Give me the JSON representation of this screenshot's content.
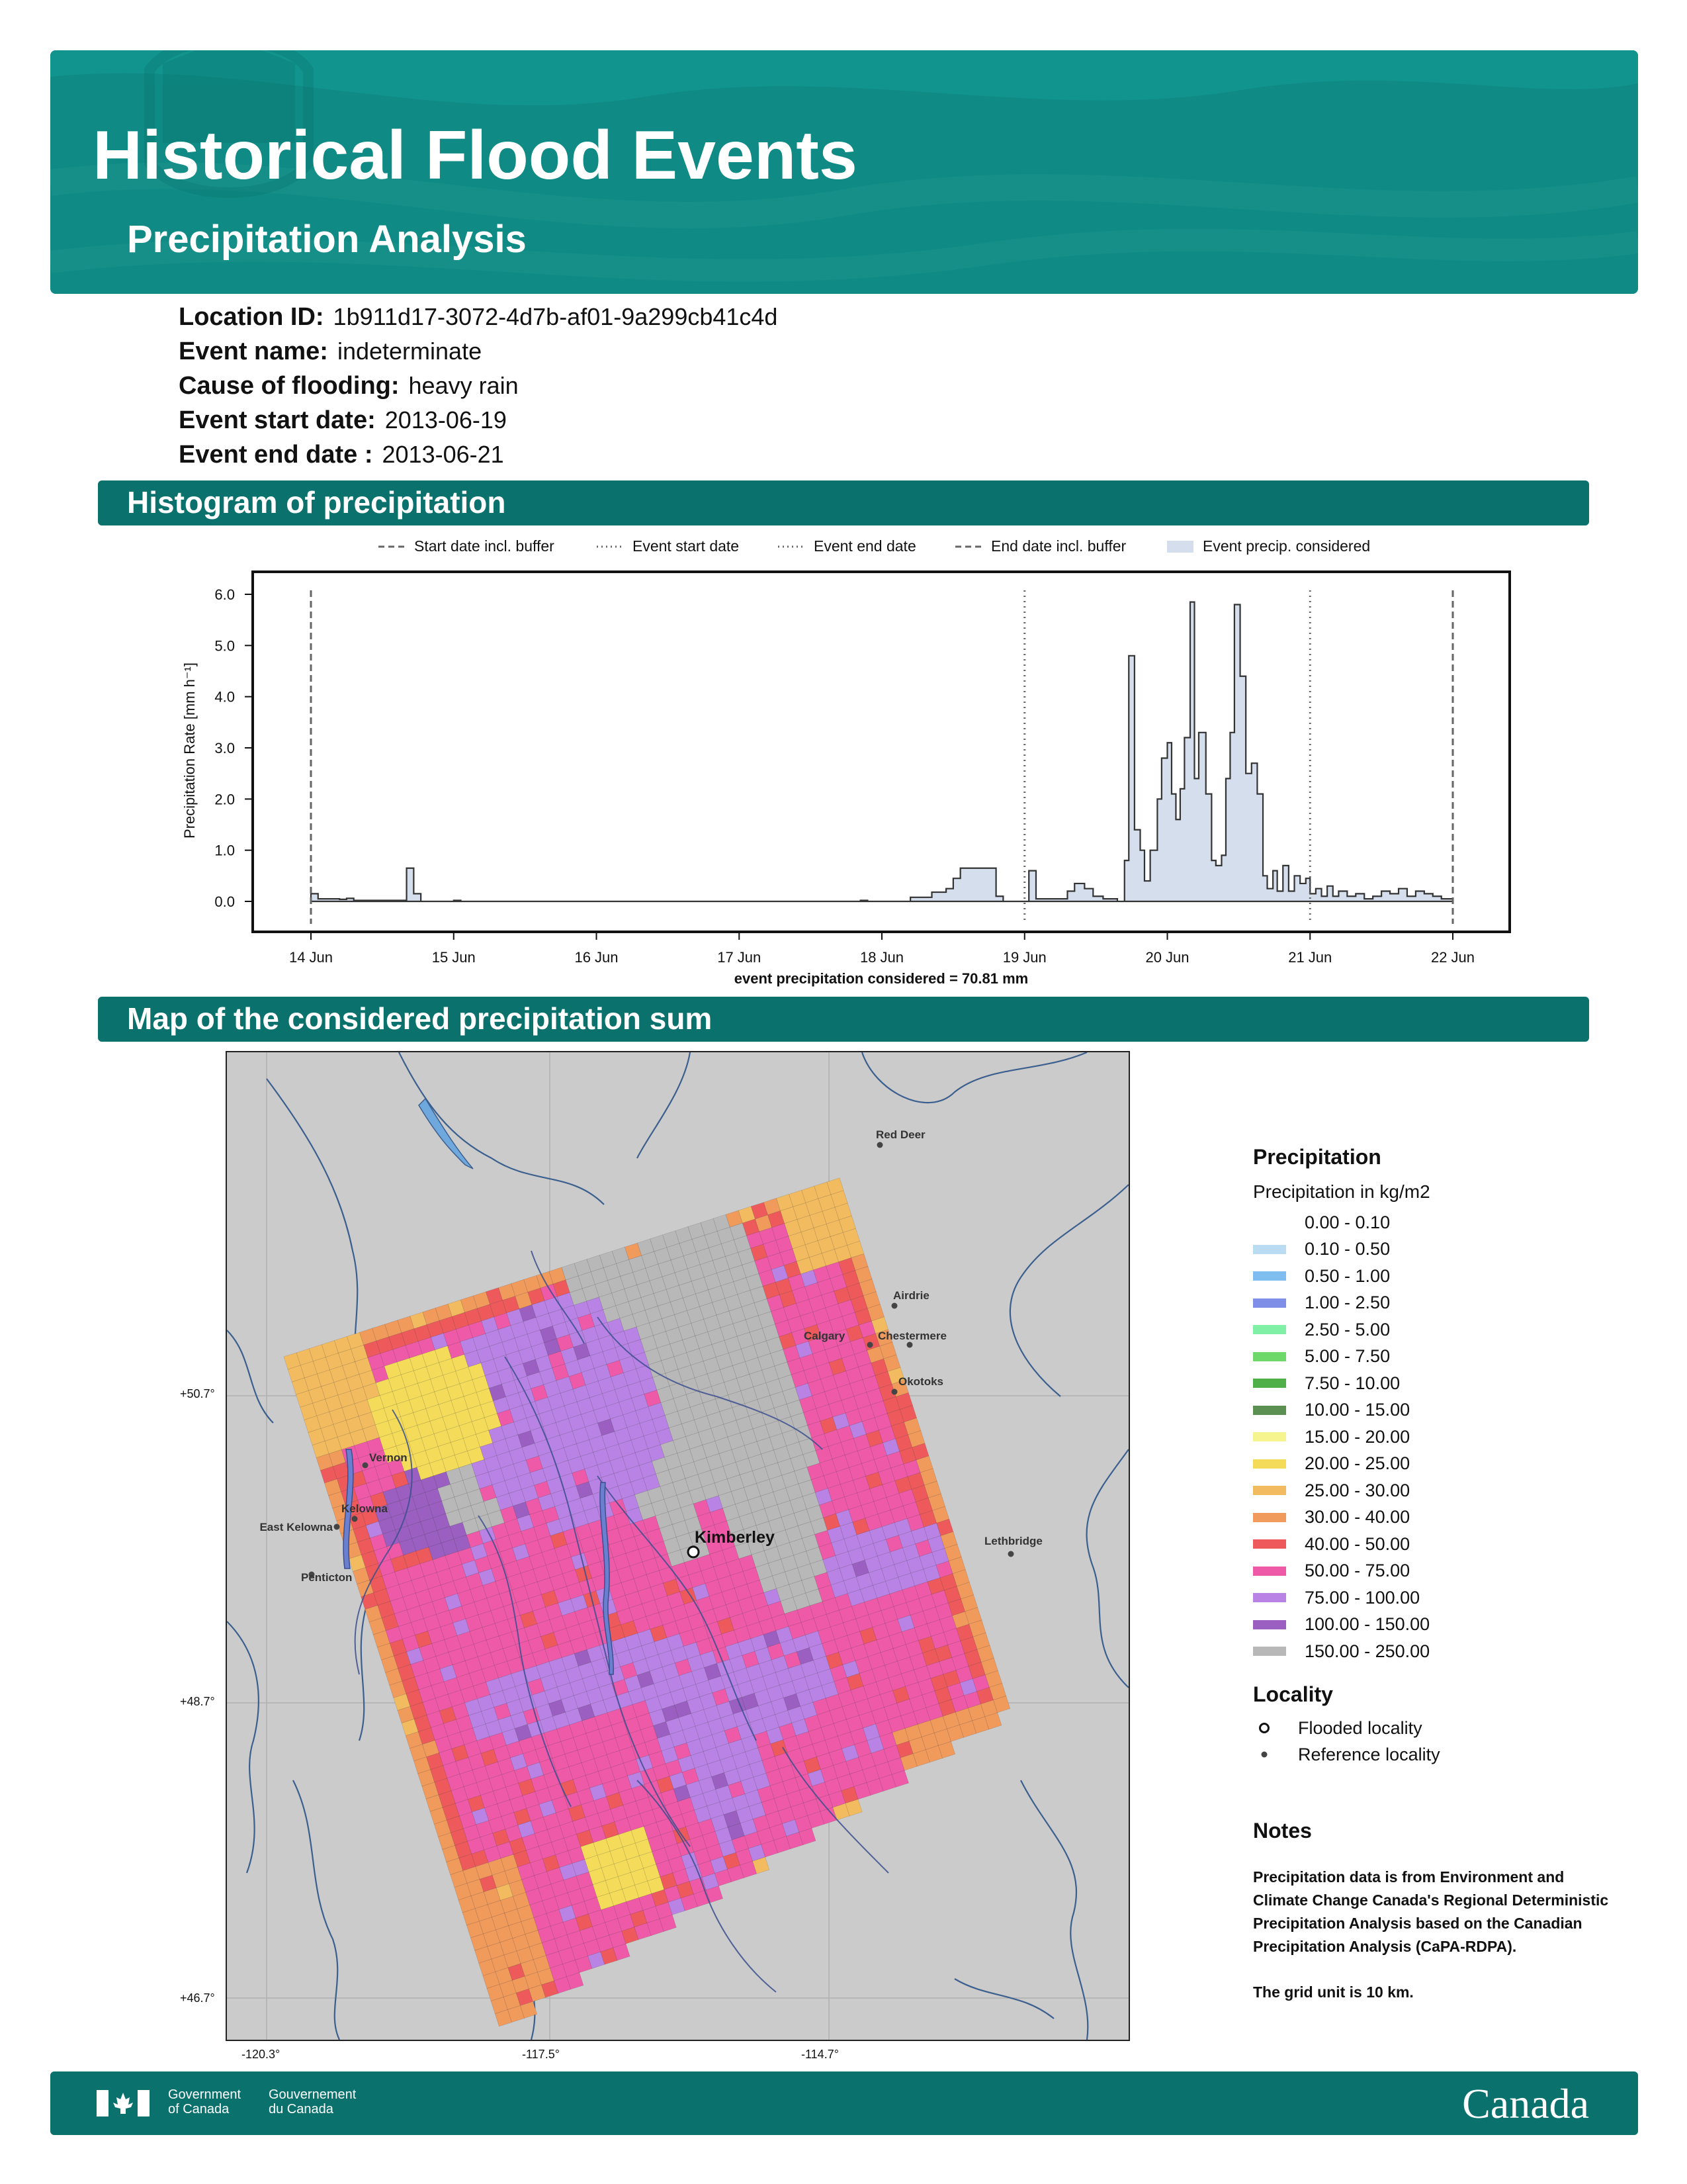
{
  "header": {
    "title": "Historical Flood Events",
    "subtitle": "Precipitation Analysis"
  },
  "event": {
    "location_id_label": "Location ID:",
    "location_id": "1b911d17-3072-4d7b-af01-9a299cb41c4d",
    "event_name_label": "Event name:",
    "event_name": "indeterminate",
    "cause_label": "Cause of flooding:",
    "cause": "heavy rain",
    "start_label": "Event start date:",
    "start": "2013-06-19",
    "end_label": "Event end date :",
    "end": "2013-06-21"
  },
  "sections": {
    "histogram": "Histogram of precipitation",
    "map": "Map of the considered precipitation sum"
  },
  "histogram_legend": {
    "start_buffer": "Start date incl. buffer",
    "event_start": "Event start date",
    "event_end": "Event end date",
    "end_buffer": "End date incl. buffer",
    "event_precip": "Event precip. considered"
  },
  "chart_data": {
    "type": "area",
    "title": "",
    "ylabel": "Precipitation Rate [mm h⁻¹]",
    "xlabel": "event precipitation considered = 70.81 mm",
    "ylim": [
      -0.2,
      6.35
    ],
    "yticks": [
      "0.0",
      "1.0",
      "2.0",
      "3.0",
      "4.0",
      "5.0",
      "6.0"
    ],
    "xticks": [
      "14 Jun",
      "15 Jun",
      "16 Jun",
      "17 Jun",
      "18 Jun",
      "19 Jun",
      "20 Jun",
      "21 Jun",
      "22 Jun"
    ],
    "x_unit": "days after 2013-06-14 00:00",
    "series": [
      {
        "values": [
          [
            0.0,
            0.15
          ],
          [
            0.05,
            0.05
          ],
          [
            0.2,
            0.04
          ],
          [
            0.25,
            0.06
          ],
          [
            0.3,
            0.02
          ],
          [
            0.67,
            0.65
          ],
          [
            0.72,
            0.15
          ],
          [
            0.77,
            0.0
          ],
          [
            1.0,
            0.02
          ],
          [
            1.05,
            0.0
          ],
          [
            3.85,
            0.02
          ],
          [
            3.9,
            0.0
          ],
          [
            4.2,
            0.08
          ],
          [
            4.35,
            0.18
          ],
          [
            4.45,
            0.25
          ],
          [
            4.5,
            0.45
          ],
          [
            4.55,
            0.65
          ],
          [
            4.8,
            0.1
          ],
          [
            4.85,
            0.0
          ],
          [
            5.03,
            0.6
          ],
          [
            5.08,
            0.05
          ],
          [
            5.3,
            0.2
          ],
          [
            5.35,
            0.35
          ],
          [
            5.42,
            0.25
          ],
          [
            5.48,
            0.1
          ],
          [
            5.55,
            0.05
          ],
          [
            5.65,
            0.0
          ],
          [
            5.7,
            0.8
          ],
          [
            5.73,
            4.8
          ],
          [
            5.77,
            1.4
          ],
          [
            5.81,
            1.0
          ],
          [
            5.84,
            0.4
          ],
          [
            5.88,
            1.0
          ],
          [
            5.93,
            2.0
          ],
          [
            5.96,
            2.8
          ],
          [
            6.0,
            3.1
          ],
          [
            6.03,
            2.1
          ],
          [
            6.06,
            1.6
          ],
          [
            6.09,
            2.2
          ],
          [
            6.12,
            3.2
          ],
          [
            6.16,
            5.85
          ],
          [
            6.19,
            2.4
          ],
          [
            6.22,
            3.3
          ],
          [
            6.27,
            2.1
          ],
          [
            6.31,
            0.8
          ],
          [
            6.34,
            0.7
          ],
          [
            6.38,
            0.9
          ],
          [
            6.41,
            2.4
          ],
          [
            6.44,
            3.3
          ],
          [
            6.47,
            5.8
          ],
          [
            6.51,
            4.4
          ],
          [
            6.55,
            2.5
          ],
          [
            6.59,
            2.7
          ],
          [
            6.63,
            2.1
          ],
          [
            6.67,
            0.5
          ],
          [
            6.7,
            0.25
          ],
          [
            6.74,
            0.6
          ],
          [
            6.77,
            0.2
          ],
          [
            6.81,
            0.7
          ],
          [
            6.85,
            0.2
          ],
          [
            6.89,
            0.5
          ],
          [
            6.93,
            0.35
          ],
          [
            6.97,
            0.45
          ],
          [
            7.0,
            0.15
          ],
          [
            7.04,
            0.25
          ],
          [
            7.08,
            0.1
          ],
          [
            7.12,
            0.3
          ],
          [
            7.16,
            0.1
          ],
          [
            7.2,
            0.2
          ],
          [
            7.26,
            0.1
          ],
          [
            7.32,
            0.15
          ],
          [
            7.38,
            0.05
          ],
          [
            7.44,
            0.1
          ],
          [
            7.5,
            0.2
          ],
          [
            7.56,
            0.15
          ],
          [
            7.62,
            0.25
          ],
          [
            7.68,
            0.1
          ],
          [
            7.74,
            0.2
          ],
          [
            7.8,
            0.15
          ],
          [
            7.86,
            0.1
          ],
          [
            7.92,
            0.05
          ],
          [
            8.0,
            0.0
          ]
        ]
      }
    ],
    "vlines": [
      {
        "x": 0.0,
        "style": "dashed",
        "label": "Start date incl. buffer"
      },
      {
        "x": 5.0,
        "style": "dotted",
        "label": "Event start date"
      },
      {
        "x": 7.0,
        "style": "dotted",
        "label": "Event end date"
      },
      {
        "x": 8.0,
        "style": "dashed",
        "label": "End date incl. buffer"
      }
    ],
    "fill_color": "#d4deed",
    "legend": "top"
  },
  "map": {
    "flooded_locality": "Kimberley",
    "localities": [
      "Red Deer",
      "Airdrie",
      "Calgary",
      "Chestermere",
      "Okotoks",
      "Vernon",
      "Kelowna",
      "East Kelowna",
      "Penticton",
      "Lethbridge"
    ],
    "lat_labels": [
      "+50.7°",
      "+48.7°",
      "+46.7°"
    ],
    "lon_labels": [
      "-120.3°",
      "-117.5°",
      "-114.7°"
    ],
    "background_color": "#cbcbcb"
  },
  "precip_legend": {
    "title": "Precipitation",
    "subtitle": "Precipitation in kg/m2",
    "classes": [
      {
        "label": "0.00 - 0.10",
        "color": "#ffffff"
      },
      {
        "label": "0.10 - 0.50",
        "color": "#b9dcf2"
      },
      {
        "label": "0.50 - 1.00",
        "color": "#7fbdf0"
      },
      {
        "label": "1.00 - 2.50",
        "color": "#7f8ee6"
      },
      {
        "label": "2.50 - 5.00",
        "color": "#7ff0a6"
      },
      {
        "label": "5.00 - 7.50",
        "color": "#6fd86a"
      },
      {
        "label": "7.50 - 10.00",
        "color": "#4fb04a"
      },
      {
        "label": "10.00 - 15.00",
        "color": "#5c8f52"
      },
      {
        "label": "15.00 - 20.00",
        "color": "#f6f48e"
      },
      {
        "label": "20.00 - 25.00",
        "color": "#f4dc5a"
      },
      {
        "label": "25.00 - 30.00",
        "color": "#f2bb60"
      },
      {
        "label": "30.00 - 40.00",
        "color": "#f09a5c"
      },
      {
        "label": "40.00 - 50.00",
        "color": "#ee5a5c"
      },
      {
        "label": "50.00 - 75.00",
        "color": "#ee5aa8"
      },
      {
        "label": "75.00 - 100.00",
        "color": "#b883e4"
      },
      {
        "label": "100.00 - 150.00",
        "color": "#9a5fc0"
      },
      {
        "label": "150.00 - 250.00",
        "color": "#b8b8b8"
      }
    ]
  },
  "locality_legend": {
    "title": "Locality",
    "flooded": "Flooded locality",
    "reference": "Reference locality"
  },
  "notes": {
    "title": "Notes",
    "text1": "Precipitation data is from Environment and Climate Change Canada's Regional Deterministic Precipitation Analysis based on the Canadian Precipitation Analysis (CaPA-RDPA).",
    "text2": "The grid unit is 10 km."
  },
  "footer": {
    "gov_en_1": "Government",
    "gov_en_2": "of Canada",
    "gov_fr_1": "Gouvernement",
    "gov_fr_2": "du Canada",
    "wordmark": "Canada"
  }
}
